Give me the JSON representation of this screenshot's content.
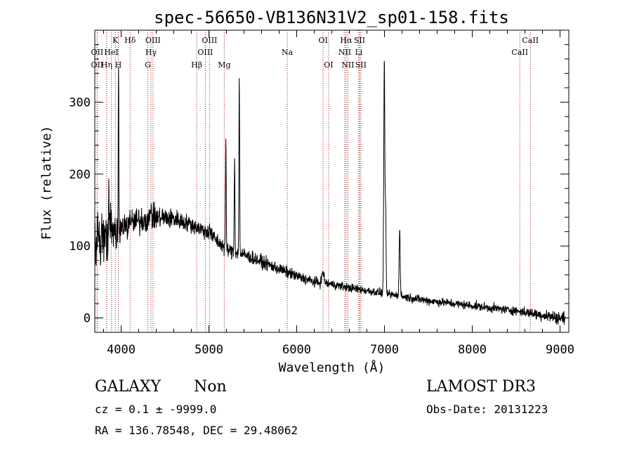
{
  "chart_data": {
    "type": "line",
    "title": "spec-56650-VB136N31V2_sp01-158.fits",
    "xlabel": "Wavelength (Å)",
    "ylabel": "Flux (relative)",
    "xlim": [
      3700,
      9100
    ],
    "ylim": [
      -20,
      400
    ],
    "xticks": [
      4000,
      5000,
      6000,
      7000,
      8000,
      9000
    ],
    "yticks": [
      0,
      100,
      200,
      300
    ],
    "x_minor_step": 200,
    "y_minor_step": 20,
    "continuum": [
      {
        "x": 3700,
        "y": 95
      },
      {
        "x": 3850,
        "y": 118
      },
      {
        "x": 4000,
        "y": 125
      },
      {
        "x": 4200,
        "y": 135
      },
      {
        "x": 4400,
        "y": 140
      },
      {
        "x": 4600,
        "y": 138
      },
      {
        "x": 4800,
        "y": 130
      },
      {
        "x": 5000,
        "y": 118
      },
      {
        "x": 5200,
        "y": 95
      },
      {
        "x": 5400,
        "y": 88
      },
      {
        "x": 5600,
        "y": 78
      },
      {
        "x": 5800,
        "y": 68
      },
      {
        "x": 6000,
        "y": 58
      },
      {
        "x": 6200,
        "y": 50
      },
      {
        "x": 6400,
        "y": 47
      },
      {
        "x": 6600,
        "y": 42
      },
      {
        "x": 6800,
        "y": 38
      },
      {
        "x": 7000,
        "y": 34
      },
      {
        "x": 7200,
        "y": 30
      },
      {
        "x": 7500,
        "y": 24
      },
      {
        "x": 8000,
        "y": 17
      },
      {
        "x": 8500,
        "y": 10
      },
      {
        "x": 9000,
        "y": 0
      }
    ],
    "noise": [
      {
        "x": 3700,
        "amp": 45
      },
      {
        "x": 4000,
        "amp": 22
      },
      {
        "x": 4700,
        "amp": 12
      },
      {
        "x": 5600,
        "amp": 9
      },
      {
        "x": 6500,
        "amp": 6
      },
      {
        "x": 8500,
        "amp": 6
      },
      {
        "x": 9000,
        "amp": 9
      }
    ],
    "peaks": [
      {
        "x": 3727,
        "h": 40,
        "w": 3
      },
      {
        "x": 3860,
        "h": 55,
        "w": 3
      },
      {
        "x": 3970,
        "h": 240,
        "w": 3
      },
      {
        "x": 4102,
        "h": 20,
        "w": 4
      },
      {
        "x": 4340,
        "h": 25,
        "w": 4
      },
      {
        "x": 5007,
        "h": 15,
        "w": 4
      },
      {
        "x": 5193,
        "h": 145,
        "w": 4
      },
      {
        "x": 5292,
        "h": 130,
        "w": 4
      },
      {
        "x": 5346,
        "h": 248,
        "w": 4
      },
      {
        "x": 6300,
        "h": 15,
        "w": 12
      },
      {
        "x": 6998,
        "h": 330,
        "w": 6
      },
      {
        "x": 7013,
        "h": 110,
        "w": 5
      },
      {
        "x": 7173,
        "h": 95,
        "w": 6
      }
    ],
    "line_color": "#000000",
    "marker_color": "#a01010",
    "line_markers": [
      {
        "x": 3727,
        "label": "OII",
        "row": 2
      },
      {
        "x": 3727,
        "label": "OII",
        "row": 3
      },
      {
        "x": 3835,
        "label": "Hη",
        "row": 3
      },
      {
        "x": 3889,
        "label": "HeI",
        "row": 2
      },
      {
        "x": 3934,
        "label": "K",
        "row": 1
      },
      {
        "x": 3968,
        "label": "H",
        "row": 3
      },
      {
        "x": 4102,
        "label": "Hδ",
        "row": 1
      },
      {
        "x": 4340,
        "label": "Hγ",
        "row": 2
      },
      {
        "x": 4363,
        "label": "OIII",
        "row": 1
      },
      {
        "x": 4304,
        "label": "G",
        "row": 3
      },
      {
        "x": 4861,
        "label": "Hβ",
        "row": 3
      },
      {
        "x": 4959,
        "label": "OIII",
        "row": 2
      },
      {
        "x": 5007,
        "label": "OIII",
        "row": 1
      },
      {
        "x": 5175,
        "label": "Mg",
        "row": 3
      },
      {
        "x": 5893,
        "label": "Na",
        "row": 2
      },
      {
        "x": 6300,
        "label": "OI",
        "row": 1
      },
      {
        "x": 6363,
        "label": "OI",
        "row": 3
      },
      {
        "x": 6548,
        "label": "NII",
        "row": 2
      },
      {
        "x": 6563,
        "label": "Hα",
        "row": 1
      },
      {
        "x": 6583,
        "label": "NII",
        "row": 3
      },
      {
        "x": 6707,
        "label": "Li",
        "row": 2
      },
      {
        "x": 6716,
        "label": "SII",
        "row": 1
      },
      {
        "x": 6731,
        "label": "SII",
        "row": 3
      },
      {
        "x": 8542,
        "label": "CaII",
        "row": 2
      },
      {
        "x": 8662,
        "label": "CaII",
        "row": 1
      }
    ]
  },
  "footer": {
    "class_label": "GALAXY",
    "subclass_label": "Non",
    "survey_label": "LAMOST DR3",
    "cz_line": "cz = 0.1 ± -9999.0",
    "obs_date": "Obs-Date: 20131223",
    "radec_line": "RA = 136.78548, DEC =  29.48062"
  }
}
